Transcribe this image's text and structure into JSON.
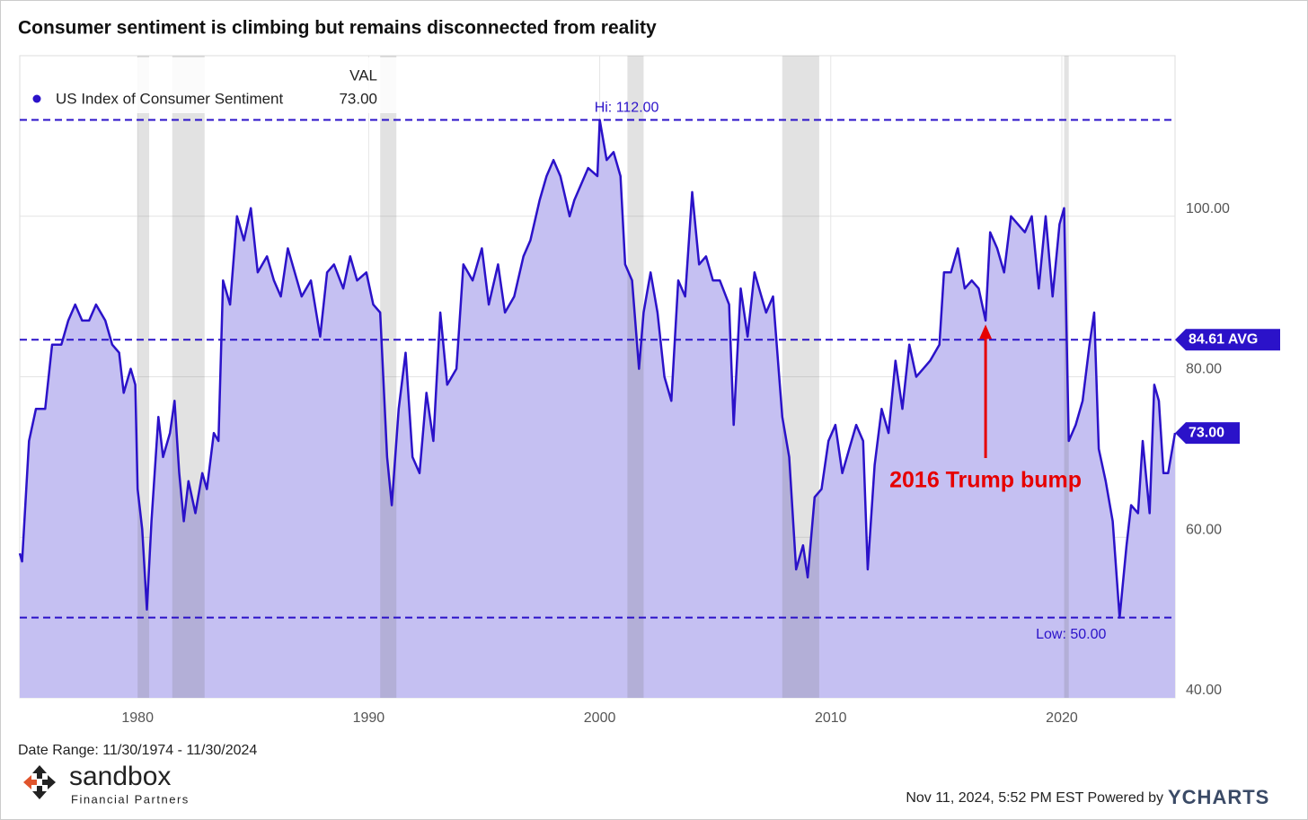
{
  "chart_data": {
    "type": "area",
    "title": "Consumer sentiment is climbing but remains disconnected from reality",
    "x": [
      1974.9,
      1975.0,
      1975.3,
      1975.6,
      1976.0,
      1976.3,
      1976.7,
      1977.0,
      1977.3,
      1977.6,
      1977.9,
      1978.2,
      1978.6,
      1978.9,
      1979.2,
      1979.4,
      1979.7,
      1979.9,
      1980.0,
      1980.2,
      1980.4,
      1980.6,
      1980.9,
      1981.1,
      1981.4,
      1981.6,
      1981.8,
      1982.0,
      1982.2,
      1982.5,
      1982.8,
      1983.0,
      1983.3,
      1983.5,
      1983.7,
      1984.0,
      1984.3,
      1984.6,
      1984.9,
      1985.2,
      1985.6,
      1985.9,
      1986.2,
      1986.5,
      1986.8,
      1987.1,
      1987.5,
      1987.9,
      1988.2,
      1988.5,
      1988.9,
      1989.2,
      1989.5,
      1989.9,
      1990.2,
      1990.5,
      1990.8,
      1991.0,
      1991.3,
      1991.6,
      1991.9,
      1992.2,
      1992.5,
      1992.8,
      1993.1,
      1993.4,
      1993.8,
      1994.1,
      1994.5,
      1994.9,
      1995.2,
      1995.6,
      1995.9,
      1996.3,
      1996.7,
      1997.0,
      1997.4,
      1997.7,
      1998.0,
      1998.3,
      1998.7,
      1998.9,
      1999.2,
      1999.5,
      1999.9,
      2000.0,
      2000.3,
      2000.6,
      2000.9,
      2001.1,
      2001.4,
      2001.7,
      2001.9,
      2002.2,
      2002.5,
      2002.8,
      2003.1,
      2003.4,
      2003.7,
      2004.0,
      2004.3,
      2004.6,
      2004.9,
      2005.2,
      2005.6,
      2005.8,
      2006.1,
      2006.4,
      2006.7,
      2006.9,
      2007.2,
      2007.5,
      2007.9,
      2008.2,
      2008.5,
      2008.8,
      2009.0,
      2009.3,
      2009.6,
      2009.9,
      2010.2,
      2010.5,
      2010.8,
      2011.1,
      2011.4,
      2011.6,
      2011.9,
      2012.2,
      2012.5,
      2012.8,
      2013.1,
      2013.4,
      2013.7,
      2014.0,
      2014.3,
      2014.7,
      2014.9,
      2015.2,
      2015.5,
      2015.8,
      2016.1,
      2016.4,
      2016.7,
      2016.9,
      2017.2,
      2017.5,
      2017.8,
      2018.1,
      2018.4,
      2018.7,
      2019.0,
      2019.3,
      2019.6,
      2019.9,
      2020.1,
      2020.3,
      2020.6,
      2020.9,
      2021.2,
      2021.4,
      2021.6,
      2021.9,
      2022.2,
      2022.5,
      2022.8,
      2023.0,
      2023.3,
      2023.5,
      2023.8,
      2024.0,
      2024.2,
      2024.4,
      2024.6,
      2024.9
    ],
    "series": [
      {
        "name": "US Index of Consumer Sentiment",
        "color": "#2b12c9",
        "fill": "#c5c0f2",
        "values": [
          58,
          57,
          72,
          76,
          76,
          84,
          84,
          87,
          89,
          87,
          87,
          89,
          87,
          84,
          83,
          78,
          81,
          79,
          66,
          61,
          51,
          62,
          75,
          70,
          73,
          77,
          68,
          62,
          67,
          63,
          68,
          66,
          73,
          72,
          92,
          89,
          100,
          97,
          101,
          93,
          95,
          92,
          90,
          96,
          93,
          90,
          92,
          85,
          93,
          94,
          91,
          95,
          92,
          93,
          89,
          88,
          70,
          64,
          76,
          83,
          70,
          68,
          78,
          72,
          88,
          79,
          81,
          94,
          92,
          96,
          89,
          94,
          88,
          90,
          95,
          97,
          102,
          105,
          107,
          105,
          100,
          102,
          104,
          106,
          105,
          112,
          107,
          108,
          105,
          94,
          92,
          81,
          88,
          93,
          88,
          80,
          77,
          92,
          90,
          103,
          94,
          95,
          92,
          92,
          89,
          74,
          91,
          85,
          93,
          91,
          88,
          90,
          75,
          70,
          56,
          59,
          55,
          65,
          66,
          72,
          74,
          68,
          71,
          74,
          72,
          56,
          69,
          76,
          73,
          82,
          76,
          84,
          80,
          81,
          82,
          84,
          93,
          93,
          96,
          91,
          92,
          91,
          87,
          98,
          96,
          93,
          100,
          99,
          98,
          100,
          91,
          100,
          90,
          99,
          101,
          72,
          74,
          77,
          84,
          88,
          71,
          67,
          62,
          50,
          59,
          64,
          63,
          72,
          63,
          79,
          77,
          68,
          68,
          73
        ]
      }
    ],
    "xlim": [
      1974.9,
      2024.9
    ],
    "ylim": [
      40,
      120
    ],
    "xticks": [
      1980,
      1990,
      2000,
      2010,
      2020
    ],
    "yticks": [
      {
        "value": 40,
        "label": "40.00"
      },
      {
        "value": 60,
        "label": "60.00"
      },
      {
        "value": 80,
        "label": "80.00"
      },
      {
        "value": 100,
        "label": "100.00"
      }
    ],
    "grid": true,
    "recessions": [
      [
        1980.0,
        1980.5
      ],
      [
        1981.5,
        1982.9
      ],
      [
        1990.5,
        1991.2
      ],
      [
        2001.2,
        2001.9
      ],
      [
        2007.9,
        2009.5
      ],
      [
        2020.1,
        2020.3
      ]
    ],
    "hi": {
      "value": 112,
      "label": "Hi: 112.00"
    },
    "avg": {
      "value": 84.61,
      "label": "84.61 AVG"
    },
    "low": {
      "value": 50,
      "label": "Low: 50.00"
    },
    "last": {
      "value": 73,
      "label": "73.00"
    },
    "legend": {
      "header": "VAL",
      "value": {
        "value": 73,
        "label": "73.00"
      }
    },
    "annotation": "2016 Trump bump",
    "date_range": "Date Range: 11/30/1974 - 11/30/2024",
    "brand": "sandbox",
    "brand_sub": "Financial Partners",
    "timestamp": "Nov 11, 2024, 5:52 PM EST Powered by",
    "powered": "YCHARTS"
  }
}
